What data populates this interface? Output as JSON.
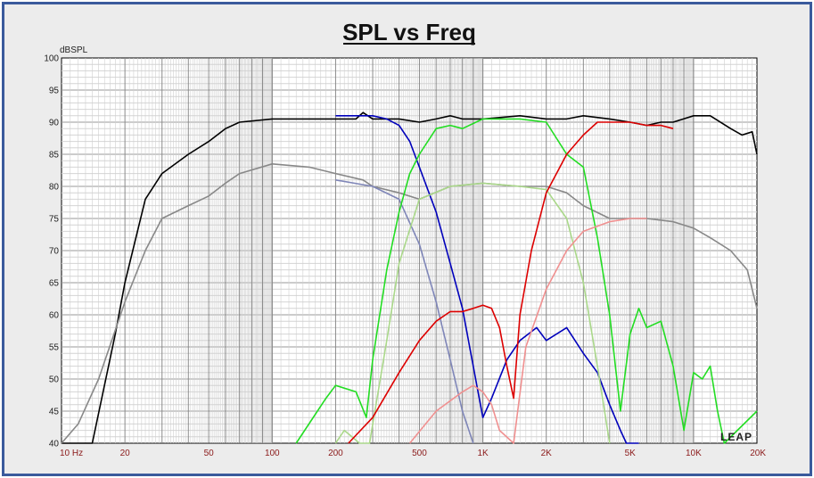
{
  "chart_data": {
    "type": "line",
    "title": "SPL vs Freq",
    "ylabel": "dBSPL",
    "xlabel": "",
    "xscale": "log",
    "xlim": [
      10,
      20000
    ],
    "ylim": [
      40,
      100
    ],
    "grid": true,
    "legend": "none",
    "y_ticks": [
      40,
      45,
      50,
      55,
      60,
      65,
      70,
      75,
      80,
      85,
      90,
      95,
      100
    ],
    "x_ticks": [
      {
        "value": 10,
        "label": "10  Hz"
      },
      {
        "value": 20,
        "label": "20"
      },
      {
        "value": 50,
        "label": "50"
      },
      {
        "value": 100,
        "label": "100"
      },
      {
        "value": 200,
        "label": "200"
      },
      {
        "value": 500,
        "label": "500"
      },
      {
        "value": 1000,
        "label": "1K"
      },
      {
        "value": 2000,
        "label": "2K"
      },
      {
        "value": 5000,
        "label": "5K"
      },
      {
        "value": 10000,
        "label": "10K"
      },
      {
        "value": 20000,
        "label": "20K"
      }
    ],
    "series": [
      {
        "color": "#000000",
        "x": [
          10,
          14,
          18,
          20,
          25,
          30,
          40,
          50,
          60,
          70,
          100,
          150,
          250,
          270,
          300,
          400,
          500,
          600,
          700,
          800,
          1000,
          1500,
          2000,
          2500,
          3000,
          4000,
          5000,
          6000,
          7000,
          8000,
          10000,
          12000,
          15000,
          17000,
          19000,
          20000
        ],
        "y": [
          40,
          40,
          57,
          65,
          78,
          82,
          85,
          87,
          89,
          90,
          90.5,
          90.5,
          90.5,
          91.5,
          90.5,
          90.5,
          90,
          90.5,
          91,
          90.5,
          90.5,
          91,
          90.5,
          90.5,
          91,
          90.5,
          90,
          89.5,
          90,
          90,
          91,
          91,
          89,
          88,
          88.5,
          85
        ]
      },
      {
        "color": "#888888",
        "x": [
          10,
          12,
          15,
          20,
          25,
          30,
          40,
          50,
          60,
          70,
          100,
          150,
          200,
          270,
          300,
          400,
          500,
          700,
          1000,
          1500,
          2000,
          2500,
          3000,
          4000,
          5000,
          6000,
          8000,
          10000,
          12000,
          15000,
          18000,
          20000
        ],
        "y": [
          40,
          43,
          50,
          62,
          70,
          75,
          77,
          78.5,
          80.5,
          82,
          83.5,
          83,
          82,
          81,
          80,
          79,
          78,
          80,
          80.5,
          80,
          80,
          79,
          77,
          75,
          75,
          75,
          74.5,
          73.5,
          72,
          70,
          67,
          61
        ]
      },
      {
        "color": "#0000bb",
        "x": [
          200,
          300,
          350,
          400,
          450,
          500,
          600,
          700,
          800,
          900,
          1000,
          1100,
          1300,
          1500,
          1800,
          2000,
          2500,
          3000,
          3500,
          4000,
          4500,
          4800,
          5500
        ],
        "y": [
          91,
          91,
          90.5,
          89.5,
          87,
          83,
          76,
          68,
          61,
          52,
          44,
          47,
          53,
          56,
          58,
          56,
          58,
          54,
          51,
          46,
          42,
          40,
          40
        ]
      },
      {
        "color": "#7f86b8",
        "x": [
          200,
          300,
          400,
          500,
          600,
          700,
          800,
          900
        ],
        "y": [
          81,
          80,
          78,
          71,
          62,
          53,
          45,
          40
        ]
      },
      {
        "color": "#22dd22",
        "x": [
          130,
          180,
          200,
          250,
          280,
          300,
          350,
          400,
          450,
          500,
          600,
          700,
          800,
          1000,
          1500,
          2000,
          2500,
          3000,
          3500,
          4000,
          4500,
          5000,
          5500,
          6000,
          7000,
          8000,
          9000,
          10000,
          11000,
          12000,
          13000,
          14000,
          20000
        ],
        "y": [
          40,
          47,
          49,
          48,
          44,
          53,
          67,
          76,
          82,
          85,
          89,
          89.5,
          89,
          90.5,
          90.5,
          90,
          85,
          83,
          72,
          60,
          45,
          57,
          61,
          58,
          59,
          52,
          42,
          51,
          50,
          52,
          45,
          40,
          45
        ]
      },
      {
        "color": "#aad88a",
        "x": [
          200,
          220,
          260,
          290,
          350,
          400,
          500,
          700,
          1000,
          1500,
          2000,
          2500,
          3000,
          3500,
          4000
        ],
        "y": [
          40,
          42,
          40,
          40,
          56,
          68,
          78,
          80,
          80.5,
          80,
          79.5,
          75,
          65,
          52,
          40
        ]
      },
      {
        "color": "#dd0000",
        "x": [
          230,
          300,
          400,
          500,
          600,
          700,
          800,
          900,
          1000,
          1100,
          1200,
          1300,
          1400,
          1500,
          1700,
          2000,
          2500,
          3000,
          3500,
          4000,
          5000,
          6000,
          7000,
          8000
        ],
        "y": [
          40,
          44,
          51,
          56,
          59,
          60.5,
          60.5,
          61,
          61.5,
          61,
          58,
          52,
          47,
          60,
          70,
          79,
          85,
          88,
          90,
          90,
          90,
          89.5,
          89.5,
          89
        ]
      },
      {
        "color": "#f09090",
        "x": [
          450,
          600,
          800,
          900,
          1000,
          1100,
          1200,
          1400,
          1600,
          2000,
          2500,
          3000,
          4000,
          5000,
          6000
        ],
        "y": [
          40,
          45,
          48,
          49,
          48,
          46,
          42,
          40,
          55,
          64,
          70,
          73,
          74.5,
          75,
          75
        ]
      }
    ]
  },
  "watermark": "LEAP"
}
